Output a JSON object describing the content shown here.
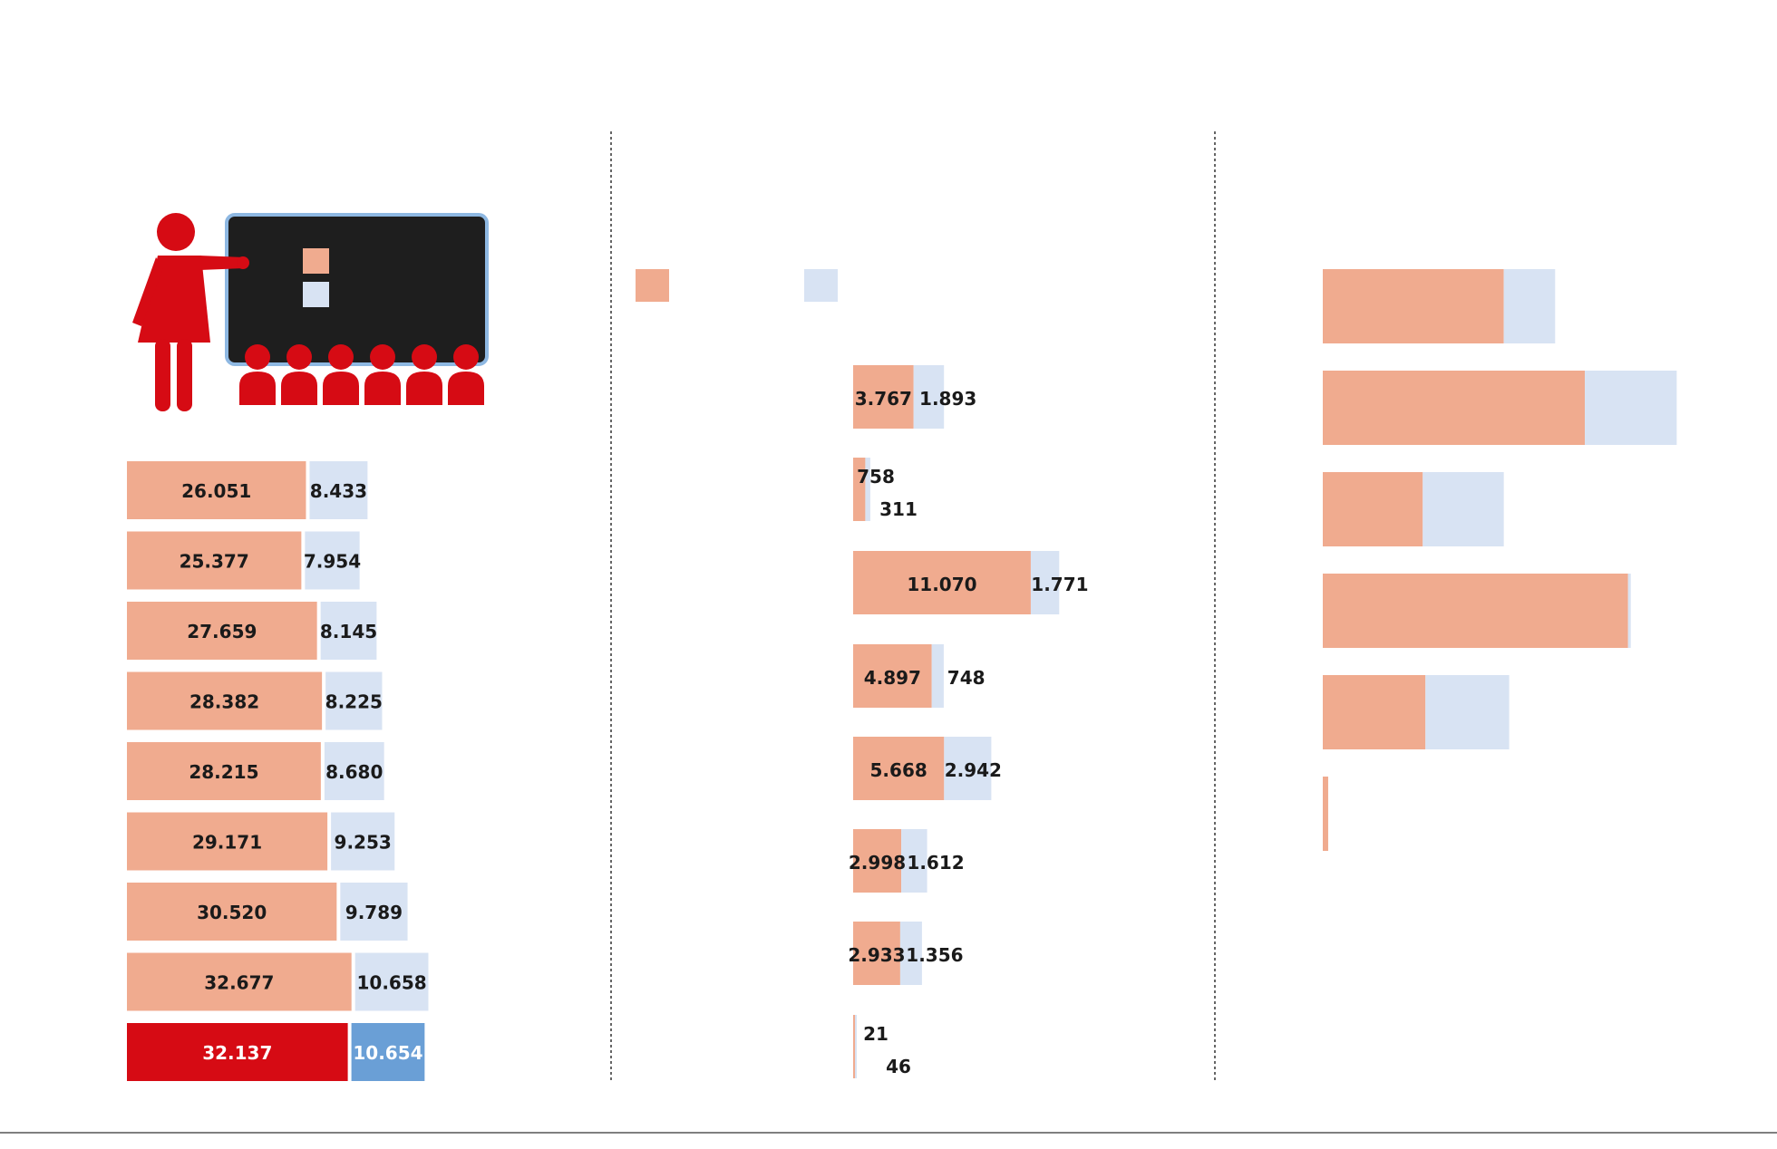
{
  "colors": {
    "salmon": "#f0ab8f",
    "lightblue": "#d8e3f3",
    "red": "#d60b14",
    "blue": "#6a9fd6",
    "dark": "#1e1e1e"
  },
  "icons": [
    "teacher-icon",
    "blackboard-icon",
    "pupil-icon",
    "legend-swatch-salmon",
    "legend-swatch-lightblue"
  ],
  "chart_data": [
    {
      "type": "bar",
      "orientation": "horizontal",
      "stacked": true,
      "series": [
        {
          "values": [
            26051,
            25377,
            27659,
            28382,
            28215,
            29171,
            30520,
            32677,
            32137
          ]
        },
        {
          "values": [
            8433,
            7954,
            8145,
            8225,
            8680,
            9253,
            9789,
            10658,
            10654
          ]
        }
      ],
      "labels": [
        [
          "26.051",
          "8.433"
        ],
        [
          "25.377",
          "7.954"
        ],
        [
          "27.659",
          "8.145"
        ],
        [
          "28.382",
          "8.225"
        ],
        [
          "28.215",
          "8.680"
        ],
        [
          "29.171",
          "9.253"
        ],
        [
          "30.520",
          "9.789"
        ],
        [
          "32.677",
          "10.658"
        ],
        [
          "32.137",
          "10.654"
        ]
      ],
      "highlight_last": true
    },
    {
      "type": "bar",
      "orientation": "horizontal",
      "stacked": true,
      "series": [
        {
          "values": [
            3767,
            758,
            11070,
            4897,
            5668,
            2998,
            2933,
            21
          ]
        },
        {
          "values": [
            1893,
            311,
            1771,
            748,
            2942,
            1612,
            1356,
            46
          ]
        }
      ],
      "labels": [
        [
          "3.767",
          "1.893"
        ],
        [
          "758",
          "311"
        ],
        [
          "11.070",
          "1.771"
        ],
        [
          "4.897",
          "748"
        ],
        [
          "5.668",
          "2.942"
        ],
        [
          "2.998",
          "1.612"
        ],
        [
          "2.933",
          "1.356"
        ],
        [
          "21",
          "46"
        ]
      ]
    },
    {
      "type": "bar",
      "orientation": "horizontal",
      "stacked": true,
      "series": [
        {
          "values": [
            67,
            97,
            37,
            113,
            38,
            2
          ]
        },
        {
          "values": [
            19,
            34,
            30,
            1,
            31,
            0
          ]
        }
      ]
    }
  ]
}
